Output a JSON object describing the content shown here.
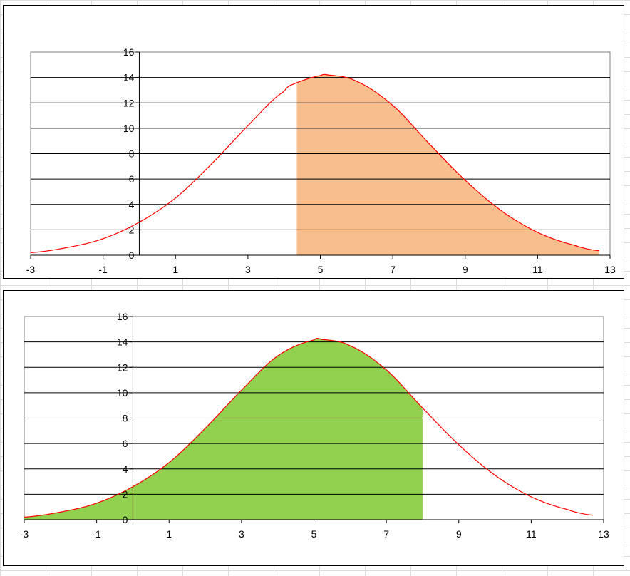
{
  "chart_data": [
    {
      "type": "area",
      "title": "",
      "xlabel": "",
      "ylabel": "",
      "xlim": [
        -3,
        13
      ],
      "ylim": [
        0,
        16
      ],
      "x_ticks": [
        "-3",
        "-1",
        "1",
        "3",
        "5",
        "7",
        "9",
        "11",
        "13"
      ],
      "y_ticks": [
        "0",
        "2",
        "4",
        "6",
        "8",
        "10",
        "12",
        "14",
        "16"
      ],
      "grid": "horizontal",
      "curve": {
        "color": "#ff0000",
        "x": [
          -3,
          -2,
          -1,
          0,
          1,
          2,
          3,
          4,
          4.35,
          5,
          5.2,
          6,
          7,
          8,
          9,
          10,
          11,
          12,
          12.7
        ],
        "y": [
          0.2,
          0.6,
          1.3,
          2.6,
          4.5,
          7.2,
          10.2,
          12.9,
          13.6,
          14.15,
          14.2,
          13.7,
          11.8,
          8.8,
          5.9,
          3.5,
          1.8,
          0.8,
          0.35
        ]
      },
      "shaded_region": {
        "from": 4.35,
        "to": 12.7,
        "color": "#f8be8e"
      }
    },
    {
      "type": "area",
      "title": "",
      "xlabel": "",
      "ylabel": "",
      "xlim": [
        -3,
        13
      ],
      "ylim": [
        0,
        16
      ],
      "x_ticks": [
        "-3",
        "-1",
        "1",
        "3",
        "5",
        "7",
        "9",
        "11",
        "13"
      ],
      "y_ticks": [
        "0",
        "2",
        "4",
        "6",
        "8",
        "10",
        "12",
        "14",
        "16"
      ],
      "grid": "horizontal",
      "curve": {
        "color": "#ff0000",
        "x": [
          -3,
          -2,
          -1,
          0,
          1,
          2,
          3,
          4,
          5,
          5.2,
          6,
          7,
          8,
          9,
          10,
          11,
          12,
          12.7
        ],
        "y": [
          0.2,
          0.6,
          1.3,
          2.6,
          4.5,
          7.2,
          10.2,
          12.9,
          14.15,
          14.2,
          13.7,
          11.8,
          8.8,
          5.9,
          3.5,
          1.8,
          0.8,
          0.35
        ]
      },
      "shaded_region": {
        "from": -3,
        "to": 8,
        "color": "#92d050"
      }
    }
  ]
}
